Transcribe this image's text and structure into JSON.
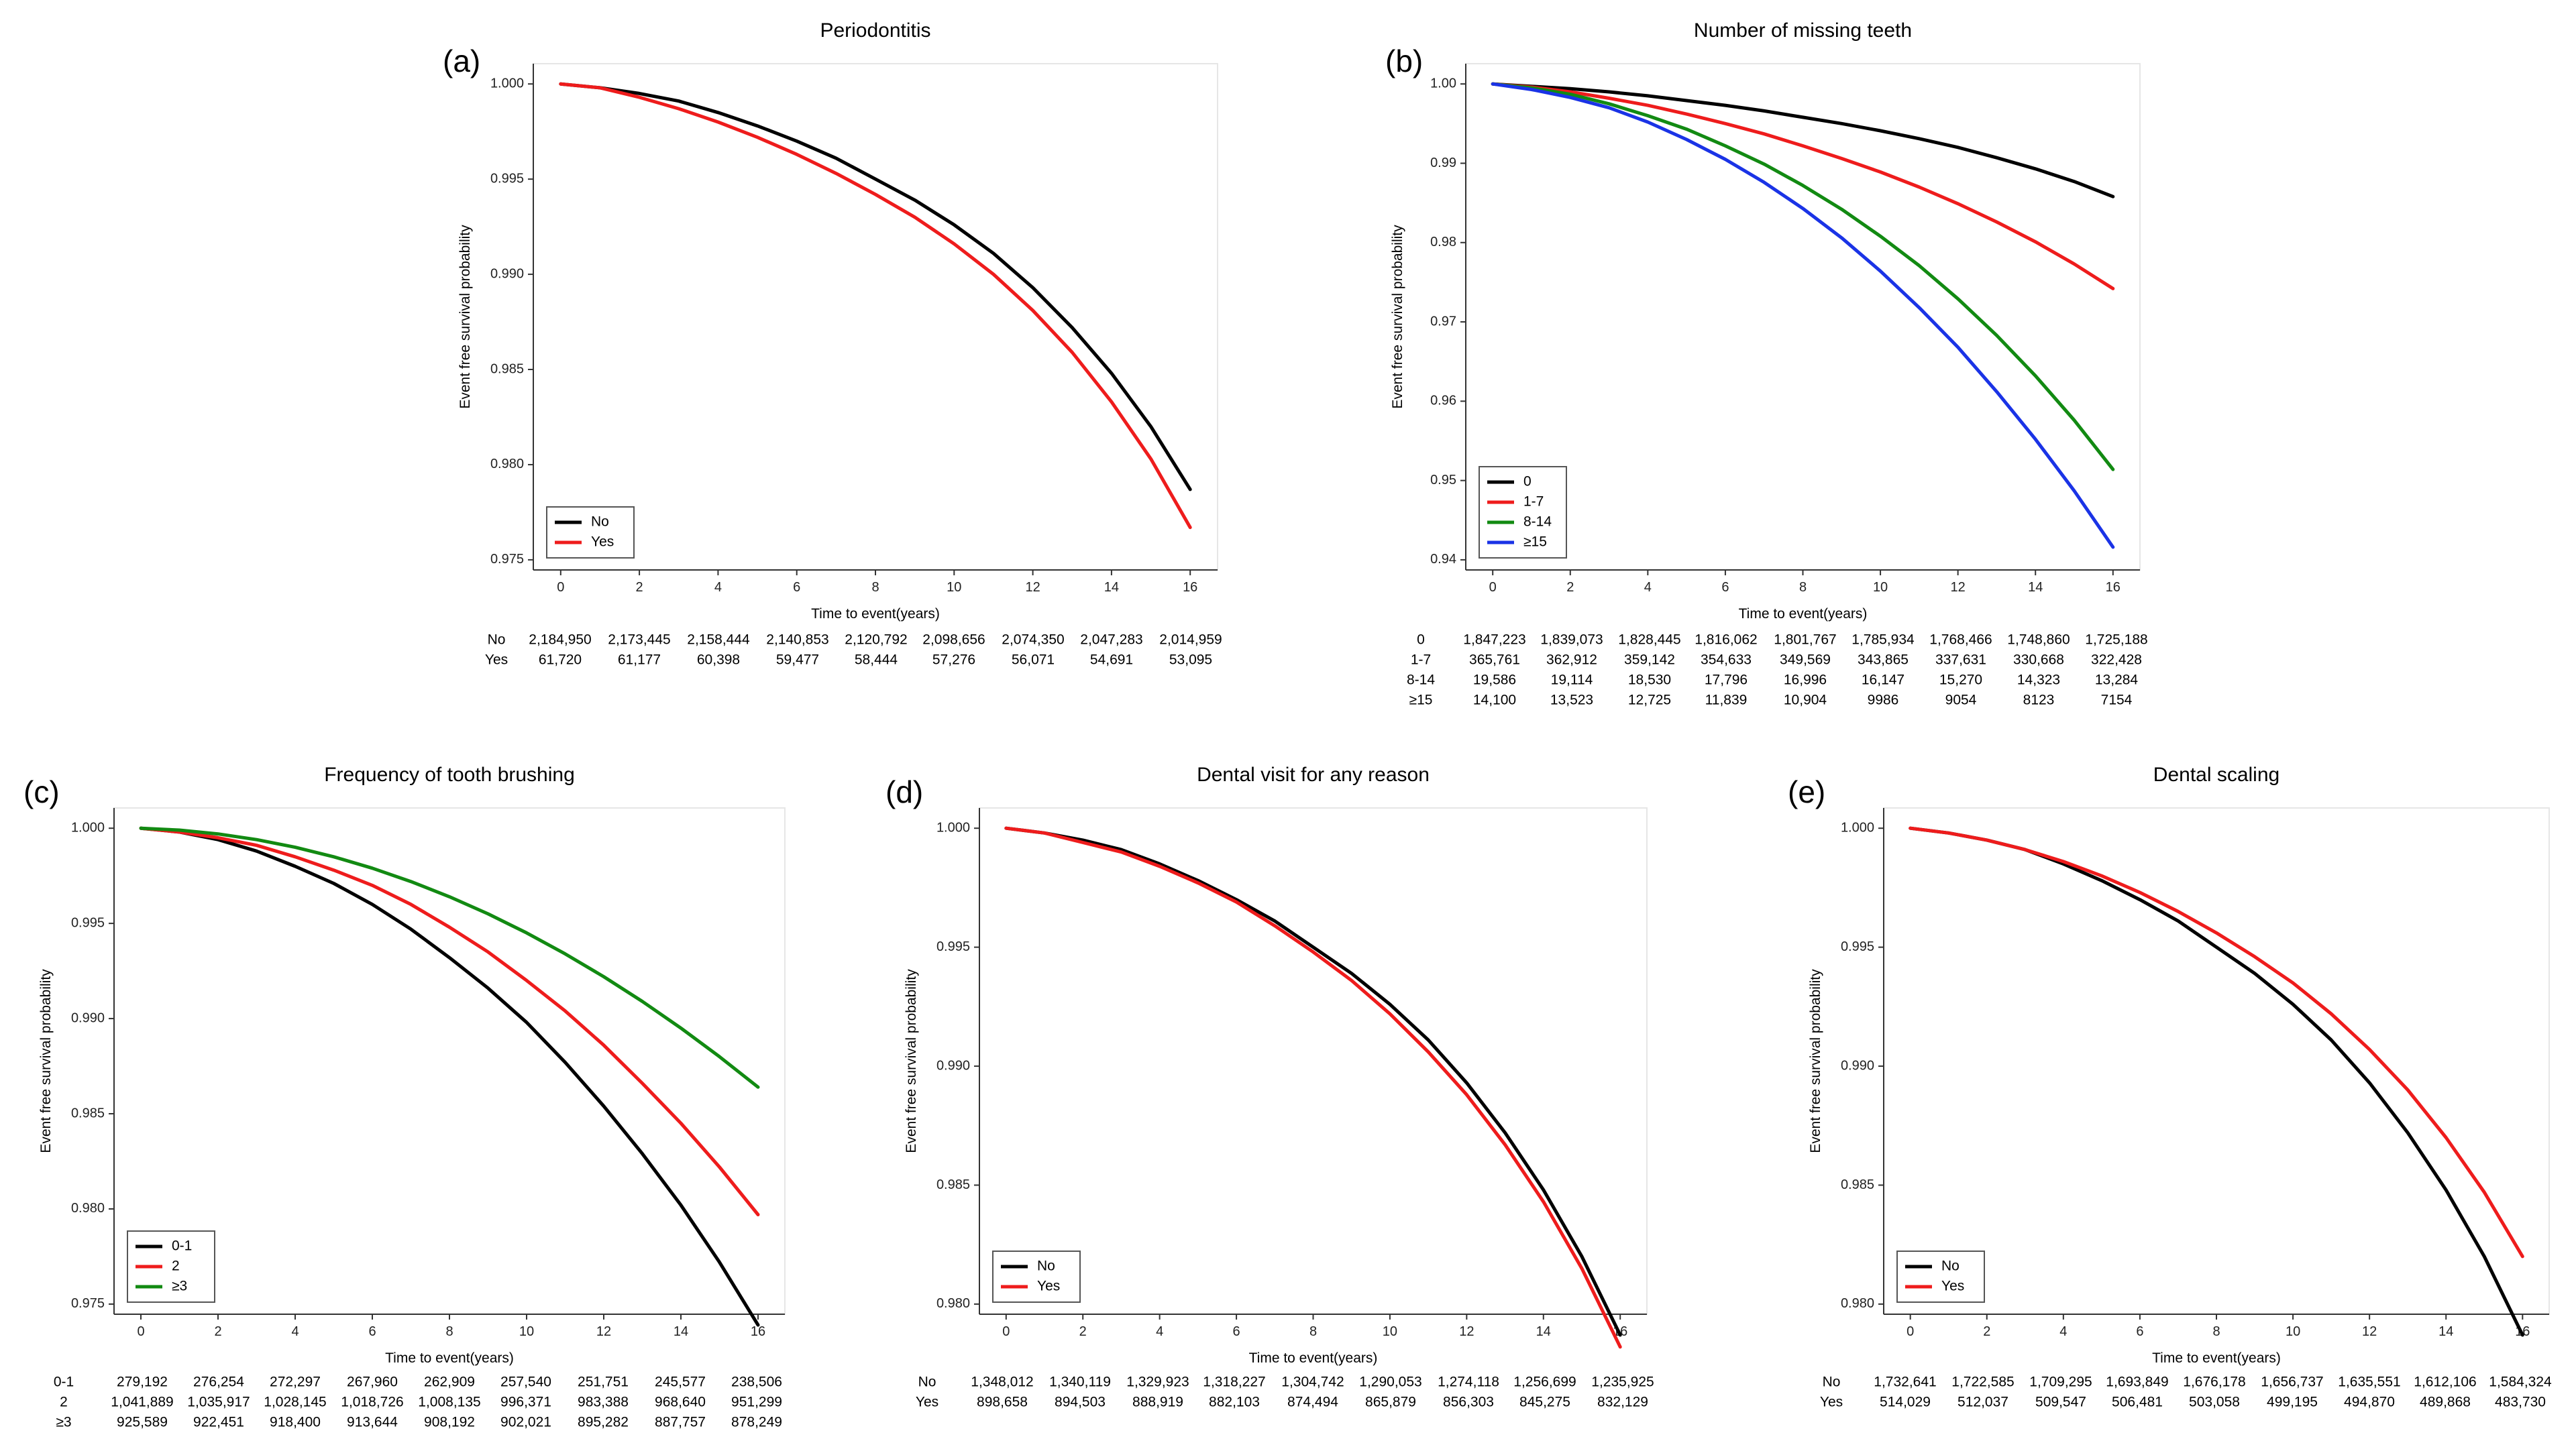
{
  "figure": {
    "xlabel": "Time to event(years)",
    "ylabel": "Event free survival probability"
  },
  "chart_data": [
    {
      "panel": "(a)",
      "type": "line",
      "title": "Periodontitis",
      "xlabel": "Time to event(years)",
      "ylabel": "Event free survival probability",
      "xlim": [
        0,
        16
      ],
      "ylim": [
        0.975,
        1.0
      ],
      "xticks": [
        0,
        2,
        4,
        6,
        8,
        10,
        12,
        14,
        16
      ],
      "yticks": [
        0.975,
        0.98,
        0.985,
        0.99,
        0.995,
        1.0
      ],
      "ytick_labels": [
        "0.975",
        "0.980",
        "0.985",
        "0.990",
        "0.995",
        "1.000"
      ],
      "legend": "bottom-left",
      "x": [
        0,
        1,
        2,
        3,
        4,
        5,
        6,
        7,
        8,
        9,
        10,
        11,
        12,
        13,
        14,
        15,
        16
      ],
      "series": [
        {
          "name": "No",
          "color": "#000000",
          "values": [
            1.0,
            0.9998,
            0.9995,
            0.9991,
            0.9985,
            0.9978,
            0.997,
            0.9961,
            0.995,
            0.9939,
            0.9926,
            0.9911,
            0.9893,
            0.9872,
            0.9848,
            0.982,
            0.9787
          ]
        },
        {
          "name": "Yes",
          "color": "#ee1c1c",
          "values": [
            1.0,
            0.9998,
            0.9993,
            0.9987,
            0.998,
            0.9972,
            0.9963,
            0.9953,
            0.9942,
            0.993,
            0.9916,
            0.99,
            0.9881,
            0.9859,
            0.9833,
            0.9803,
            0.9767
          ]
        }
      ],
      "risk_table": [
        {
          "label": "No",
          "values": [
            "2,184,950",
            "2,173,445",
            "2,158,444",
            "2,140,853",
            "2,120,792",
            "2,098,656",
            "2,074,350",
            "2,047,283",
            "2,014,959"
          ]
        },
        {
          "label": "Yes",
          "values": [
            "61,720",
            "61,177",
            "60,398",
            "59,477",
            "58,444",
            "57,276",
            "56,071",
            "54,691",
            "53,095"
          ]
        }
      ]
    },
    {
      "panel": "(b)",
      "type": "line",
      "title": "Number of missing teeth",
      "xlabel": "Time to event(years)",
      "ylabel": "Event free survival probability",
      "xlim": [
        0,
        16
      ],
      "ylim": [
        0.94,
        1.0
      ],
      "xticks": [
        0,
        2,
        4,
        6,
        8,
        10,
        12,
        14,
        16
      ],
      "yticks": [
        0.94,
        0.95,
        0.96,
        0.97,
        0.98,
        0.99,
        1.0
      ],
      "ytick_labels": [
        "0.94",
        "0.95",
        "0.96",
        "0.97",
        "0.98",
        "0.99",
        "1.00"
      ],
      "legend": "bottom-left",
      "x": [
        0,
        1,
        2,
        3,
        4,
        5,
        6,
        7,
        8,
        9,
        10,
        11,
        12,
        13,
        14,
        15,
        16
      ],
      "series": [
        {
          "name": "0",
          "color": "#000000",
          "values": [
            1.0,
            0.9997,
            0.9994,
            0.999,
            0.9985,
            0.9979,
            0.9973,
            0.9966,
            0.9958,
            0.995,
            0.9941,
            0.9931,
            0.992,
            0.9907,
            0.9893,
            0.9877,
            0.9858
          ]
        },
        {
          "name": "1-7",
          "color": "#ee1c1c",
          "values": [
            1.0,
            0.9996,
            0.999,
            0.9982,
            0.9973,
            0.9962,
            0.995,
            0.9937,
            0.9922,
            0.9906,
            0.9889,
            0.987,
            0.9849,
            0.9826,
            0.9801,
            0.9773,
            0.9742
          ]
        },
        {
          "name": "8-14",
          "color": "#128a12",
          "values": [
            1.0,
            0.9995,
            0.9987,
            0.9975,
            0.996,
            0.9943,
            0.9922,
            0.9899,
            0.9872,
            0.9842,
            0.9808,
            0.9771,
            0.9729,
            0.9683,
            0.9632,
            0.9576,
            0.9514
          ]
        },
        {
          "name": "≥15",
          "color": "#1a33e6",
          "values": [
            1.0,
            0.9993,
            0.9983,
            0.997,
            0.9952,
            0.993,
            0.9905,
            0.9876,
            0.9843,
            0.9806,
            0.9764,
            0.9718,
            0.9668,
            0.9612,
            0.9552,
            0.9487,
            0.9416
          ]
        }
      ],
      "risk_table": [
        {
          "label": "0",
          "values": [
            "1,847,223",
            "1,839,073",
            "1,828,445",
            "1,816,062",
            "1,801,767",
            "1,785,934",
            "1,768,466",
            "1,748,860",
            "1,725,188"
          ]
        },
        {
          "label": "1-7",
          "values": [
            "365,761",
            "362,912",
            "359,142",
            "354,633",
            "349,569",
            "343,865",
            "337,631",
            "330,668",
            "322,428"
          ]
        },
        {
          "label": "8-14",
          "values": [
            "19,586",
            "19,114",
            "18,530",
            "17,796",
            "16,996",
            "16,147",
            "15,270",
            "14,323",
            "13,284"
          ]
        },
        {
          "label": "≥15",
          "values": [
            "14,100",
            "13,523",
            "12,725",
            "11,839",
            "10,904",
            "9986",
            "9054",
            "8123",
            "7154"
          ]
        }
      ]
    },
    {
      "panel": "(c)",
      "type": "line",
      "title": "Frequency of tooth brushing",
      "xlabel": "Time to event(years)",
      "ylabel": "Event free survival probability",
      "xlim": [
        0,
        16
      ],
      "ylim": [
        0.975,
        1.0
      ],
      "xticks": [
        0,
        2,
        4,
        6,
        8,
        10,
        12,
        14,
        16
      ],
      "yticks": [
        0.975,
        0.98,
        0.985,
        0.99,
        0.995,
        1.0
      ],
      "ytick_labels": [
        "0.975",
        "0.980",
        "0.985",
        "0.990",
        "0.995",
        "1.000"
      ],
      "legend": "bottom-left",
      "x": [
        0,
        1,
        2,
        3,
        4,
        5,
        6,
        7,
        8,
        9,
        10,
        11,
        12,
        13,
        14,
        15,
        16
      ],
      "series": [
        {
          "name": "0-1",
          "color": "#000000",
          "values": [
            1.0,
            0.9998,
            0.9994,
            0.9988,
            0.998,
            0.9971,
            0.996,
            0.9947,
            0.9932,
            0.9916,
            0.9898,
            0.9877,
            0.9854,
            0.9829,
            0.9802,
            0.9772,
            0.9739
          ]
        },
        {
          "name": "2",
          "color": "#ee1c1c",
          "values": [
            1.0,
            0.9998,
            0.9995,
            0.9991,
            0.9985,
            0.9978,
            0.997,
            0.996,
            0.9948,
            0.9935,
            0.992,
            0.9904,
            0.9886,
            0.9866,
            0.9845,
            0.9822,
            0.9797
          ]
        },
        {
          "name": "≥3",
          "color": "#128a12",
          "values": [
            1.0,
            0.9999,
            0.9997,
            0.9994,
            0.999,
            0.9985,
            0.9979,
            0.9972,
            0.9964,
            0.9955,
            0.9945,
            0.9934,
            0.9922,
            0.9909,
            0.9895,
            0.988,
            0.9864
          ]
        }
      ],
      "risk_table": [
        {
          "label": "0-1",
          "values": [
            "279,192",
            "276,254",
            "272,297",
            "267,960",
            "262,909",
            "257,540",
            "251,751",
            "245,577",
            "238,506"
          ]
        },
        {
          "label": "2",
          "values": [
            "1,041,889",
            "1,035,917",
            "1,028,145",
            "1,018,726",
            "1,008,135",
            "996,371",
            "983,388",
            "968,640",
            "951,299"
          ]
        },
        {
          "label": "≥3",
          "values": [
            "925,589",
            "922,451",
            "918,400",
            "913,644",
            "908,192",
            "902,021",
            "895,282",
            "887,757",
            "878,249"
          ]
        }
      ]
    },
    {
      "panel": "(d)",
      "type": "line",
      "title": "Dental visit for any reason",
      "xlabel": "Time to event(years)",
      "ylabel": "Event free survival probability",
      "xlim": [
        0,
        16
      ],
      "ylim": [
        0.98,
        1.0
      ],
      "xticks": [
        0,
        2,
        4,
        6,
        8,
        10,
        12,
        14,
        16
      ],
      "yticks": [
        0.98,
        0.985,
        0.99,
        0.995,
        1.0
      ],
      "ytick_labels": [
        "0.980",
        "0.985",
        "0.990",
        "0.995",
        "1.000"
      ],
      "legend": "bottom-left",
      "x": [
        0,
        1,
        2,
        3,
        4,
        5,
        6,
        7,
        8,
        9,
        10,
        11,
        12,
        13,
        14,
        15,
        16
      ],
      "series": [
        {
          "name": "No",
          "color": "#000000",
          "values": [
            1.0,
            0.9998,
            0.9995,
            0.9991,
            0.9985,
            0.9978,
            0.997,
            0.9961,
            0.995,
            0.9939,
            0.9926,
            0.9911,
            0.9893,
            0.9872,
            0.9848,
            0.982,
            0.9787
          ]
        },
        {
          "name": "Yes",
          "color": "#ee1c1c",
          "values": [
            1.0,
            0.9998,
            0.9994,
            0.999,
            0.9984,
            0.9977,
            0.9969,
            0.9959,
            0.9948,
            0.9936,
            0.9922,
            0.9906,
            0.9888,
            0.9867,
            0.9843,
            0.9815,
            0.9782
          ]
        }
      ],
      "risk_table": [
        {
          "label": "No",
          "values": [
            "1,348,012",
            "1,340,119",
            "1,329,923",
            "1,318,227",
            "1,304,742",
            "1,290,053",
            "1,274,118",
            "1,256,699",
            "1,235,925"
          ]
        },
        {
          "label": "Yes",
          "values": [
            "898,658",
            "894,503",
            "888,919",
            "882,103",
            "874,494",
            "865,879",
            "856,303",
            "845,275",
            "832,129"
          ]
        }
      ]
    },
    {
      "panel": "(e)",
      "type": "line",
      "title": "Dental scaling",
      "xlabel": "Time to event(years)",
      "ylabel": "Event free survival probability",
      "xlim": [
        0,
        16
      ],
      "ylim": [
        0.98,
        1.0
      ],
      "xticks": [
        0,
        2,
        4,
        6,
        8,
        10,
        12,
        14,
        16
      ],
      "yticks": [
        0.98,
        0.985,
        0.99,
        0.995,
        1.0
      ],
      "ytick_labels": [
        "0.980",
        "0.985",
        "0.990",
        "0.995",
        "1.000"
      ],
      "legend": "bottom-left",
      "x": [
        0,
        1,
        2,
        3,
        4,
        5,
        6,
        7,
        8,
        9,
        10,
        11,
        12,
        13,
        14,
        15,
        16
      ],
      "series": [
        {
          "name": "No",
          "color": "#000000",
          "values": [
            1.0,
            0.9998,
            0.9995,
            0.9991,
            0.9985,
            0.9978,
            0.997,
            0.9961,
            0.995,
            0.9939,
            0.9926,
            0.9911,
            0.9893,
            0.9872,
            0.9848,
            0.982,
            0.9787
          ]
        },
        {
          "name": "Yes",
          "color": "#ee1c1c",
          "values": [
            1.0,
            0.9998,
            0.9995,
            0.9991,
            0.9986,
            0.998,
            0.9973,
            0.9965,
            0.9956,
            0.9946,
            0.9935,
            0.9922,
            0.9907,
            0.989,
            0.987,
            0.9847,
            0.982
          ]
        }
      ],
      "risk_table": [
        {
          "label": "No",
          "values": [
            "1,732,641",
            "1,722,585",
            "1,709,295",
            "1,693,849",
            "1,676,178",
            "1,656,737",
            "1,635,551",
            "1,612,106",
            "1,584,324"
          ]
        },
        {
          "label": "Yes",
          "values": [
            "514,029",
            "512,037",
            "509,547",
            "506,481",
            "503,058",
            "499,195",
            "494,870",
            "489,868",
            "483,730"
          ]
        }
      ]
    }
  ]
}
